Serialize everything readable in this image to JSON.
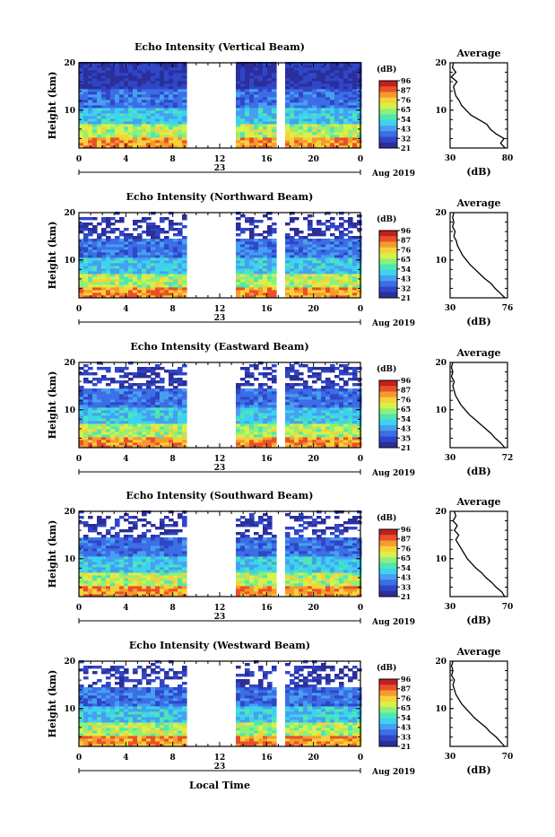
{
  "colormap": [
    "#2b2f9a",
    "#3046c8",
    "#3c6ee6",
    "#46a0f0",
    "#3cd2f0",
    "#4ee6b4",
    "#8ef07a",
    "#d8f04a",
    "#f6d23a",
    "#f69a2e",
    "#e8502a",
    "#c41e1e"
  ],
  "chart_data": [
    {
      "type": "heatmap",
      "title": "Echo Intensity (Vertical Beam)",
      "ylabel": "Height (km)",
      "x_ticks": [
        "0",
        "4",
        "8",
        "12",
        "16",
        "20",
        "0"
      ],
      "date_day": "23",
      "date_label": "Aug 2019",
      "ylim": [
        2,
        20
      ],
      "y_ticks": [
        "20",
        "10"
      ],
      "gaps": [
        [
          9,
          13
        ],
        [
          16.5,
          17.5
        ]
      ],
      "colorbar": {
        "unit": "(dB)",
        "ticks": [
          "96",
          "87",
          "76",
          "65",
          "54",
          "43",
          "32",
          "21"
        ]
      },
      "profile": {
        "title": "Average",
        "xlabel": "(dB)",
        "x_ticks": [
          "30",
          "80"
        ],
        "xlim": [
          30,
          80
        ],
        "ylim": [
          2,
          20
        ],
        "y_ticks": [
          "20",
          "10"
        ],
        "heights": [
          2,
          3,
          4,
          5,
          6,
          7,
          8,
          9,
          10,
          11,
          12,
          13,
          14,
          15,
          16,
          17,
          18,
          19,
          20
        ],
        "values": [
          78,
          74,
          77,
          70,
          65,
          62,
          55,
          48,
          44,
          40,
          38,
          35,
          34,
          33,
          36,
          31,
          35,
          32,
          33
        ]
      }
    },
    {
      "type": "heatmap",
      "title": "Echo Intensity (Northward Beam)",
      "ylabel": "Height (km)",
      "x_ticks": [
        "0",
        "4",
        "8",
        "12",
        "16",
        "20",
        "0"
      ],
      "date_day": "23",
      "date_label": "Aug 2019",
      "ylim": [
        2,
        20
      ],
      "y_ticks": [
        "20",
        "10"
      ],
      "gaps": [
        [
          9,
          13
        ],
        [
          16.5,
          17.5
        ]
      ],
      "colorbar": {
        "unit": "(dB)",
        "ticks": [
          "96",
          "87",
          "76",
          "65",
          "54",
          "43",
          "32",
          "21"
        ]
      },
      "profile": {
        "title": "Average",
        "xlabel": "(dB)",
        "x_ticks": [
          "30",
          "76"
        ],
        "xlim": [
          30,
          76
        ],
        "ylim": [
          2,
          20
        ],
        "y_ticks": [
          "20",
          "10"
        ],
        "heights": [
          2,
          3,
          4,
          5,
          6,
          7,
          8,
          9,
          10,
          11,
          12,
          13,
          14,
          15,
          16,
          17,
          18,
          19,
          20
        ],
        "values": [
          74,
          70,
          66,
          63,
          58,
          54,
          50,
          46,
          43,
          40,
          38,
          36,
          35,
          33,
          34,
          32,
          33,
          32,
          33
        ]
      }
    },
    {
      "type": "heatmap",
      "title": "Echo Intensity (Eastward Beam)",
      "ylabel": "Height (km)",
      "x_ticks": [
        "0",
        "4",
        "8",
        "12",
        "16",
        "20",
        "0"
      ],
      "date_day": "23",
      "date_label": "Aug 2019",
      "ylim": [
        2,
        20
      ],
      "y_ticks": [
        "20",
        "10"
      ],
      "gaps": [
        [
          9,
          13
        ],
        [
          16.5,
          17.5
        ]
      ],
      "colorbar": {
        "unit": "(dB)",
        "ticks": [
          "96",
          "87",
          "76",
          "65",
          "54",
          "43",
          "35",
          "21"
        ]
      },
      "profile": {
        "title": "Average",
        "xlabel": "(dB)",
        "x_ticks": [
          "30",
          "72"
        ],
        "xlim": [
          30,
          72
        ],
        "ylim": [
          2,
          20
        ],
        "y_ticks": [
          "20",
          "10"
        ],
        "heights": [
          2,
          3,
          4,
          5,
          6,
          7,
          8,
          9,
          10,
          11,
          12,
          13,
          14,
          15,
          16,
          17,
          18,
          19,
          20
        ],
        "values": [
          70,
          67,
          63,
          60,
          56,
          52,
          48,
          44,
          41,
          38,
          36,
          34,
          33,
          32,
          33,
          31,
          32,
          31,
          32
        ]
      }
    },
    {
      "type": "heatmap",
      "title": "Echo Intensity (Southward Beam)",
      "ylabel": "Height (km)",
      "x_ticks": [
        "0",
        "4",
        "8",
        "12",
        "16",
        "20",
        "0"
      ],
      "date_day": "23",
      "date_label": "Aug 2019",
      "ylim": [
        2,
        20
      ],
      "y_ticks": [
        "20",
        "10"
      ],
      "gaps": [
        [
          9,
          13
        ],
        [
          16.5,
          17.5
        ]
      ],
      "colorbar": {
        "unit": "(dB)",
        "ticks": [
          "96",
          "87",
          "76",
          "65",
          "54",
          "43",
          "33",
          "21"
        ]
      },
      "profile": {
        "title": "Average",
        "xlabel": "(dB)",
        "x_ticks": [
          "30",
          "70"
        ],
        "xlim": [
          30,
          70
        ],
        "ylim": [
          2,
          20
        ],
        "y_ticks": [
          "20",
          "10"
        ],
        "heights": [
          2,
          3,
          4,
          5,
          6,
          7,
          8,
          9,
          10,
          11,
          12,
          13,
          14,
          15,
          16,
          17,
          18,
          19,
          20
        ],
        "values": [
          68,
          66,
          62,
          59,
          55,
          52,
          48,
          45,
          42,
          40,
          38,
          36,
          34,
          36,
          33,
          35,
          32,
          34,
          33
        ]
      }
    },
    {
      "type": "heatmap",
      "title": "Echo Intensity (Westward Beam)",
      "ylabel": "Height (km)",
      "x_ticks": [
        "0",
        "4",
        "8",
        "12",
        "16",
        "20",
        "0"
      ],
      "date_day": "23",
      "date_label": "Aug 2019",
      "ylim": [
        2,
        20
      ],
      "y_ticks": [
        "20",
        "10"
      ],
      "gaps": [
        [
          9,
          13
        ],
        [
          16.5,
          17.5
        ]
      ],
      "colorbar": {
        "unit": "(dB)",
        "ticks": [
          "96",
          "87",
          "76",
          "65",
          "54",
          "43",
          "33",
          "21"
        ]
      },
      "profile": {
        "title": "Average",
        "xlabel": "(dB)",
        "x_ticks": [
          "30",
          "70"
        ],
        "xlim": [
          30,
          70
        ],
        "ylim": [
          2,
          20
        ],
        "y_ticks": [
          "20",
          "10"
        ],
        "heights": [
          2,
          3,
          4,
          5,
          6,
          7,
          8,
          9,
          10,
          11,
          12,
          13,
          14,
          15,
          16,
          17,
          18,
          19,
          20
        ],
        "values": [
          68,
          65,
          62,
          58,
          55,
          51,
          47,
          44,
          41,
          38,
          36,
          34,
          33,
          32,
          33,
          31,
          32,
          31,
          32
        ]
      }
    }
  ],
  "footer": {
    "xlabel": "Local Time"
  }
}
